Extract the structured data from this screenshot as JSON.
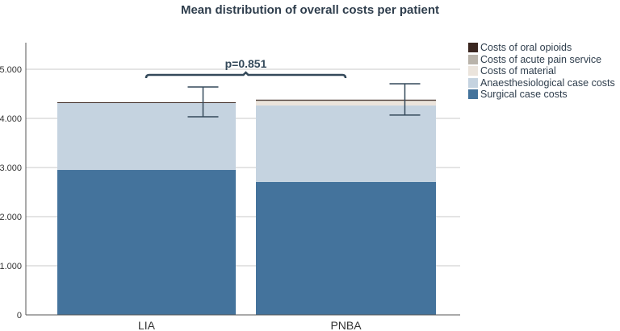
{
  "chart_data": {
    "type": "bar",
    "stacked": true,
    "title": "Mean distribution of overall costs per patient",
    "xlabel": "",
    "ylabel": "",
    "ylim": [
      0,
      5540
    ],
    "yticks": [
      0,
      1000,
      2000,
      3000,
      4000,
      5000
    ],
    "ytick_labels": [
      "0",
      "1.000",
      "2.000",
      "3.000",
      "4.000",
      "5.000"
    ],
    "grid": true,
    "categories": [
      "LIA",
      "PNBA"
    ],
    "series": [
      {
        "name": "Surgical case costs",
        "color": "#44739c",
        "values": [
          2950,
          2705
        ]
      },
      {
        "name": "Anaesthesiological case costs",
        "color": "#c5d3e0",
        "values": [
          1368,
          1557
        ]
      },
      {
        "name": "Costs of material",
        "color": "#ebe4dc",
        "values": [
          0,
          95
        ]
      },
      {
        "name": "Costs of acute pain service",
        "color": "#b9b3aa",
        "values": [
          0,
          10
        ]
      },
      {
        "name": "Costs of oral opioids",
        "color": "#3a2620",
        "values": [
          10,
          13
        ]
      }
    ],
    "error_bars": [
      {
        "low": 4033,
        "high": 4639
      },
      {
        "low": 4066,
        "high": 4705
      }
    ],
    "annotation": {
      "text": "p=0.851",
      "between": [
        "LIA",
        "PNBA"
      ]
    },
    "legend_position": "right",
    "legend_order": [
      4,
      3,
      2,
      1,
      0
    ]
  }
}
